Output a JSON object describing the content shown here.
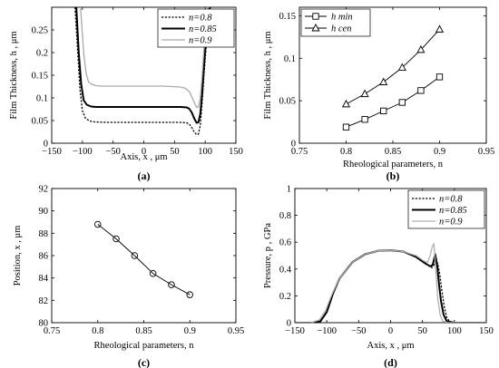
{
  "chart_data": [
    {
      "type": "line",
      "panel_label": "(a)",
      "xlabel": "Axis, x , μm",
      "ylabel": "Film Thickness, h , μm",
      "xlim": [
        -150,
        150
      ],
      "ylim": [
        0,
        0.3
      ],
      "xticks": [
        "−150",
        "−100",
        "−50",
        "0",
        "50",
        "100",
        "150"
      ],
      "yticks": [
        "0",
        "0.05",
        "0.1",
        "0.15",
        "0.2",
        "0.25"
      ],
      "grid": false,
      "legend": "top-right",
      "series": [
        {
          "name": "n=0.8",
          "color": "#000000",
          "dash": "dotted",
          "x": [
            -112,
            -108,
            -104,
            -100,
            -95,
            -88,
            -80,
            -60,
            -30,
            0,
            30,
            60,
            70,
            74,
            78,
            82,
            86,
            89,
            92,
            95,
            98,
            102,
            106,
            110
          ],
          "y": [
            0.3,
            0.21,
            0.12,
            0.072,
            0.055,
            0.049,
            0.047,
            0.046,
            0.046,
            0.046,
            0.046,
            0.046,
            0.045,
            0.042,
            0.035,
            0.025,
            0.019,
            0.02,
            0.04,
            0.09,
            0.15,
            0.22,
            0.28,
            0.31
          ]
        },
        {
          "name": "n=0.85",
          "color": "#000000",
          "dash": "solid",
          "x": [
            -110,
            -106,
            -102,
            -98,
            -93,
            -86,
            -78,
            -60,
            -30,
            0,
            30,
            60,
            70,
            74,
            78,
            82,
            86,
            89,
            92,
            95,
            98,
            102,
            106,
            110
          ],
          "y": [
            0.3,
            0.2,
            0.13,
            0.095,
            0.085,
            0.081,
            0.08,
            0.08,
            0.08,
            0.08,
            0.08,
            0.08,
            0.079,
            0.076,
            0.068,
            0.055,
            0.045,
            0.046,
            0.065,
            0.11,
            0.17,
            0.24,
            0.29,
            0.31
          ]
        },
        {
          "name": "n=0.9",
          "color": "#a9a9a9",
          "dash": "solid",
          "x": [
            -103,
            -98,
            -94,
            -90,
            -85,
            -78,
            -70,
            -55,
            -30,
            0,
            30,
            60,
            68,
            74,
            78,
            82,
            86,
            89,
            92,
            95,
            98,
            102,
            106
          ],
          "y": [
            0.3,
            0.2,
            0.155,
            0.135,
            0.13,
            0.127,
            0.126,
            0.126,
            0.126,
            0.126,
            0.126,
            0.124,
            0.121,
            0.114,
            0.103,
            0.09,
            0.079,
            0.08,
            0.1,
            0.15,
            0.21,
            0.27,
            0.31
          ]
        }
      ]
    },
    {
      "type": "line",
      "panel_label": "(b)",
      "xlabel": "Rheological parameters,  n",
      "ylabel": "Film Thickness, h , μm",
      "xlim": [
        0.75,
        0.95
      ],
      "ylim": [
        0,
        0.16
      ],
      "xticks": [
        "0.75",
        "0.8",
        "0.85",
        "0.9",
        "0.95"
      ],
      "yticks": [
        "0",
        "0.05",
        "0.1",
        "0.15"
      ],
      "grid": false,
      "legend": "top-left",
      "series": [
        {
          "name": "h min",
          "marker": "square",
          "x": [
            0.8,
            0.82,
            0.84,
            0.86,
            0.88,
            0.9
          ],
          "y": [
            0.019,
            0.028,
            0.038,
            0.048,
            0.062,
            0.078
          ]
        },
        {
          "name": "h cen",
          "marker": "triangle",
          "x": [
            0.8,
            0.82,
            0.84,
            0.86,
            0.88,
            0.9
          ],
          "y": [
            0.046,
            0.058,
            0.072,
            0.089,
            0.11,
            0.134
          ]
        }
      ]
    },
    {
      "type": "line",
      "panel_label": "(c)",
      "xlabel": "Rheological parameters, n",
      "ylabel": "Position, x , μm",
      "xlim": [
        0.75,
        0.95
      ],
      "ylim": [
        80,
        92
      ],
      "xticks": [
        "0.75",
        "0.8",
        "0.85",
        "0.9",
        "0.95"
      ],
      "yticks": [
        "80",
        "82",
        "84",
        "86",
        "88",
        "90",
        "92"
      ],
      "grid": false,
      "series": [
        {
          "marker": "circle",
          "x": [
            0.8,
            0.82,
            0.84,
            0.86,
            0.88,
            0.9
          ],
          "y": [
            88.8,
            87.5,
            86.0,
            84.4,
            83.4,
            82.5
          ]
        }
      ]
    },
    {
      "type": "line",
      "panel_label": "(d)",
      "xlabel": "Axis, x , μm",
      "ylabel": "Pressure, p , GPa",
      "xlim": [
        -150,
        150
      ],
      "ylim": [
        0,
        1
      ],
      "xticks": [
        "−150",
        "−100",
        "−50",
        "0",
        "50",
        "100",
        "150"
      ],
      "yticks": [
        "0",
        "0.2",
        "0.4",
        "0.6",
        "0.8",
        "1"
      ],
      "grid": false,
      "legend": "top-right",
      "series": [
        {
          "name": "n=0.8",
          "color": "#000000",
          "dash": "dotted",
          "x": [
            -150,
            -120,
            -110,
            -100,
            -90,
            -80,
            -60,
            -40,
            -20,
            0,
            20,
            40,
            55,
            65,
            68,
            71,
            74,
            77,
            80,
            84,
            88,
            92,
            100,
            150
          ],
          "y": [
            0.0,
            0.0,
            0.01,
            0.08,
            0.22,
            0.33,
            0.45,
            0.51,
            0.535,
            0.54,
            0.53,
            0.49,
            0.44,
            0.41,
            0.43,
            0.46,
            0.44,
            0.36,
            0.25,
            0.12,
            0.04,
            0.01,
            0.0,
            0.0
          ]
        },
        {
          "name": "n=0.85",
          "color": "#000000",
          "dash": "solid",
          "x": [
            -150,
            -120,
            -110,
            -100,
            -90,
            -80,
            -60,
            -40,
            -20,
            0,
            20,
            40,
            55,
            62,
            66,
            70,
            73,
            76,
            79,
            83,
            88,
            100,
            150
          ],
          "y": [
            0.0,
            0.0,
            0.01,
            0.08,
            0.22,
            0.33,
            0.45,
            0.51,
            0.535,
            0.54,
            0.53,
            0.49,
            0.44,
            0.42,
            0.43,
            0.51,
            0.43,
            0.28,
            0.16,
            0.06,
            0.01,
            0.0,
            0.0
          ]
        },
        {
          "name": "n=0.9",
          "color": "#b0b0b0",
          "dash": "solid",
          "x": [
            -150,
            -125,
            -112,
            -102,
            -92,
            -80,
            -60,
            -40,
            -20,
            0,
            20,
            40,
            52,
            58,
            62,
            65,
            68,
            71,
            74,
            78,
            82,
            90,
            150
          ],
          "y": [
            0.0,
            0.0,
            0.02,
            0.09,
            0.21,
            0.33,
            0.45,
            0.51,
            0.535,
            0.54,
            0.53,
            0.5,
            0.46,
            0.45,
            0.5,
            0.56,
            0.59,
            0.38,
            0.18,
            0.05,
            0.01,
            0.0,
            0.0
          ]
        }
      ]
    }
  ]
}
